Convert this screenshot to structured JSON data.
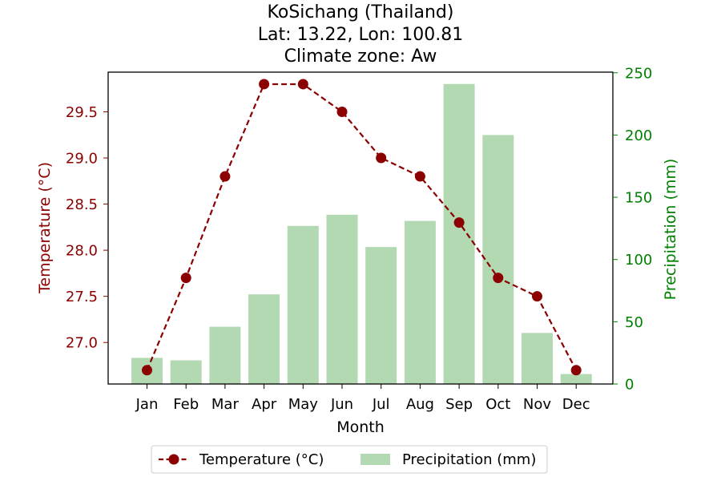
{
  "chart_data": {
    "type": "bar",
    "title_lines": [
      "KoSichang (Thailand)",
      "Lat: 13.22, Lon: 100.81",
      "Climate zone: Aw"
    ],
    "xlabel": "Month",
    "ylabel_left": "Temperature (°C)",
    "ylabel_right": "Precipitation (mm)",
    "categories": [
      "Jan",
      "Feb",
      "Mar",
      "Apr",
      "May",
      "Jun",
      "Jul",
      "Aug",
      "Sep",
      "Oct",
      "Nov",
      "Dec"
    ],
    "series": [
      {
        "name": "Temperature (°C)",
        "type": "line",
        "axis": "left",
        "color": "#8b0000",
        "line_style": "dashed",
        "marker": "circle",
        "values": [
          26.7,
          27.7,
          28.8,
          29.8,
          29.8,
          29.5,
          29.0,
          28.8,
          28.3,
          27.7,
          27.5,
          26.7
        ]
      },
      {
        "name": "Precipitation (mm)",
        "type": "bar",
        "axis": "right",
        "color": "#b2d9b2",
        "values": [
          21,
          19,
          46,
          72,
          127,
          136,
          110,
          131,
          241,
          200,
          41,
          8
        ]
      }
    ],
    "ylim_left": [
      26.55,
      29.93
    ],
    "yticks_left": [
      "27.0",
      "27.5",
      "28.0",
      "28.5",
      "29.0",
      "29.5"
    ],
    "ylim_right": [
      0,
      250.5
    ],
    "yticks_right": [
      "0",
      "50",
      "100",
      "150",
      "200",
      "250"
    ],
    "left_axis_color": "#8b0000",
    "right_axis_color": "#008000",
    "legend_position": "bottom-center",
    "grid": false
  }
}
